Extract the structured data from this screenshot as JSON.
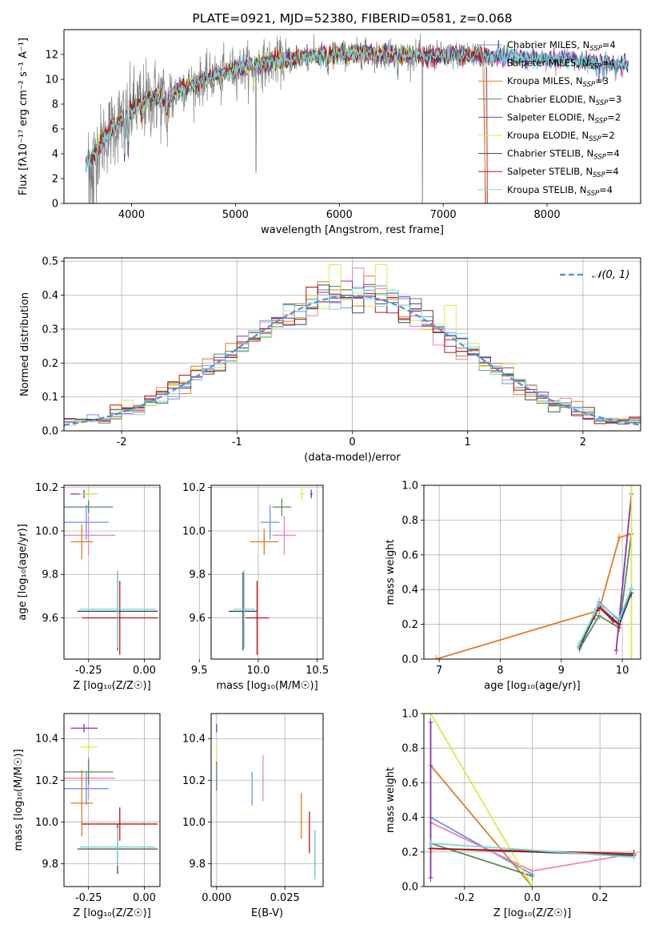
{
  "colors": {
    "Chabrier MILES": "#6495ed",
    "Salpeter MILES": "#ee82b4",
    "Kroupa MILES": "#e07b24",
    "Chabrier ELODIE": "#5a8a5a",
    "Salpeter ELODIE": "#8e2fb0",
    "Kroupa ELODIE": "#d6ec4a",
    "Chabrier STELIB": "#404850",
    "Salpeter STELIB": "#c01010",
    "Kroupa STELIB": "#78d8d8",
    "data": "#808080",
    "gauss": "#4f8fd8"
  },
  "chart_data": [
    {
      "id": "spectrum",
      "type": "line",
      "title": "PLATE=0921, MJD=52380, FIBERID=0581, z=0.068",
      "xlabel": "wavelength [Angstrom, rest frame]",
      "ylabel": "Flux [fλ10⁻¹⁷ erg cm⁻² s⁻¹ A⁻¹]",
      "xlim": [
        3350,
        8900
      ],
      "ylim": [
        0,
        14
      ],
      "xticks": [
        "4000",
        "5000",
        "6000",
        "7000",
        "8000"
      ],
      "yticks": [
        "0",
        "2",
        "4",
        "6",
        "8",
        "10",
        "12"
      ],
      "legend_position": "right",
      "legend": [
        "Chabrier MILES, NSSP=4",
        "Salpeter MILES, NSSP=4",
        "Kroupa MILES, NSSP=3",
        "Chabrier ELODIE, NSSP=3",
        "Salpeter ELODIE, NSSP=2",
        "Kroupa ELODIE, NSSP=2",
        "Chabrier STELIB, NSSP=4",
        "Salpeter STELIB, NSSP=4",
        "Kroupa STELIB, NSSP=4"
      ],
      "continuum": {
        "x": [
          3550,
          3650,
          3750,
          3850,
          3950,
          4050,
          4150,
          4250,
          4350,
          4450,
          4600,
          4800,
          5000,
          5200,
          5400,
          5600,
          5800,
          6000,
          6200,
          6400,
          6600,
          6800,
          7000,
          7200,
          7400,
          7600,
          7800,
          8000,
          8200,
          8400,
          8600,
          8750
        ],
        "y": [
          3.2,
          4.1,
          5.4,
          6.4,
          7.2,
          7.9,
          8.3,
          8.6,
          8.2,
          9.2,
          9.6,
          10.3,
          10.8,
          11.2,
          11.4,
          11.7,
          11.9,
          12.0,
          12.1,
          12.0,
          12.0,
          11.9,
          11.9,
          12.0,
          11.9,
          11.8,
          11.7,
          11.6,
          11.6,
          11.4,
          11.3,
          11.1
        ]
      }
    },
    {
      "id": "residuals",
      "type": "line",
      "xlabel": "(data-model)/error",
      "ylabel": "Normed distribution",
      "xlim": [
        -2.5,
        2.5
      ],
      "ylim": [
        0,
        0.51
      ],
      "xticks": [
        "-2",
        "-1",
        "0",
        "1",
        "2"
      ],
      "yticks": [
        "0.0",
        "0.1",
        "0.2",
        "0.3",
        "0.4",
        "0.5"
      ],
      "grid": true,
      "legend": [
        "𝒩(0, 1)"
      ],
      "bin_width": 0.1
    },
    {
      "id": "age-vs-Z",
      "type": "scatter",
      "xlabel": "Z [log₁₀(Z/Z☉)]",
      "ylabel": "age  [log₁₀(age/yr)]",
      "xlim": [
        -0.36,
        0.07
      ],
      "ylim": [
        9.41,
        10.21
      ],
      "xticks": [
        "-0.25",
        "0.00"
      ],
      "yticks": [
        "9.6",
        "9.8",
        "10.0",
        "10.2"
      ],
      "grid": true,
      "points": [
        {
          "series": "Chabrier MILES",
          "x": -0.26,
          "y": 10.04,
          "xerr": 0.1,
          "yerr": 0.08
        },
        {
          "series": "Salpeter MILES",
          "x": -0.25,
          "y": 9.98,
          "xerr": 0.12,
          "yerr": 0.09
        },
        {
          "series": "Kroupa MILES",
          "x": -0.28,
          "y": 9.95,
          "xerr": 0.05,
          "yerr": 0.08
        },
        {
          "series": "Chabrier ELODIE",
          "x": -0.25,
          "y": 10.11,
          "xerr": 0.11,
          "yerr": 0.03
        },
        {
          "series": "Salpeter ELODIE",
          "x": -0.27,
          "y": 10.17,
          "xerr": 0.06,
          "yerr": 0.02
        },
        {
          "series": "Kroupa ELODIE",
          "x": -0.25,
          "y": 10.17,
          "xerr": 0.04,
          "yerr": 0.02
        },
        {
          "series": "Chabrier STELIB",
          "x": -0.12,
          "y": 9.63,
          "xerr": 0.18,
          "yerr": 0.18
        },
        {
          "series": "Salpeter STELIB",
          "x": -0.11,
          "y": 9.6,
          "xerr": 0.17,
          "yerr": 0.17
        },
        {
          "series": "Kroupa STELIB",
          "x": -0.12,
          "y": 9.64,
          "xerr": 0.17,
          "yerr": 0.18
        }
      ]
    },
    {
      "id": "age-vs-mass",
      "type": "scatter",
      "xlabel": "mass [log₁₀(M/M☉)]",
      "ylabel": "",
      "xlim": [
        9.6,
        10.55
      ],
      "ylim": [
        9.41,
        10.21
      ],
      "xticks": [
        "9.5",
        "10.0",
        "10.5"
      ],
      "yticks": [
        "9.6",
        "9.8",
        "10.0",
        "10.2"
      ],
      "grid": true,
      "points": [
        {
          "series": "Chabrier MILES",
          "x": 10.1,
          "y": 10.04,
          "xerr": 0.08,
          "yerr": 0.08
        },
        {
          "series": "Salpeter MILES",
          "x": 10.22,
          "y": 9.98,
          "xerr": 0.1,
          "yerr": 0.09
        },
        {
          "series": "Kroupa MILES",
          "x": 10.05,
          "y": 9.95,
          "xerr": 0.12,
          "yerr": 0.06
        },
        {
          "series": "Chabrier ELODIE",
          "x": 10.2,
          "y": 10.11,
          "xerr": 0.08,
          "yerr": 0.04
        },
        {
          "series": "Salpeter ELODIE",
          "x": 10.45,
          "y": 10.17,
          "xerr": 0.01,
          "yerr": 0.02
        },
        {
          "series": "Kroupa ELODIE",
          "x": 10.37,
          "y": 10.17,
          "xerr": 0.02,
          "yerr": 0.03
        },
        {
          "series": "Chabrier STELIB",
          "x": 9.87,
          "y": 9.63,
          "xerr": 0.12,
          "yerr": 0.18
        },
        {
          "series": "Salpeter STELIB",
          "x": 9.99,
          "y": 9.6,
          "xerr": 0.1,
          "yerr": 0.17
        },
        {
          "series": "Kroupa STELIB",
          "x": 9.88,
          "y": 9.64,
          "xerr": 0.09,
          "yerr": 0.18
        }
      ]
    },
    {
      "id": "mass-weight-vs-age",
      "type": "line",
      "xlabel": "age  [log₁₀(age/yr)]",
      "ylabel": "mass weight",
      "xlim": [
        6.75,
        10.3
      ],
      "ylim": [
        0,
        1
      ],
      "xticks": [
        "7",
        "8",
        "9",
        "10"
      ],
      "yticks": [
        "0.0",
        "0.2",
        "0.4",
        "0.6",
        "0.8",
        "1.0"
      ],
      "grid": true,
      "series": [
        {
          "series": "Chabrier MILES",
          "x": [
            9.3,
            9.55,
            9.62,
            9.95,
            10.15
          ],
          "y": [
            0.08,
            0.27,
            0.33,
            0.22,
            0.4
          ]
        },
        {
          "series": "Salpeter MILES",
          "x": [
            9.3,
            9.55,
            9.62,
            9.95,
            10.15
          ],
          "y": [
            0.07,
            0.26,
            0.31,
            0.2,
            0.38
          ]
        },
        {
          "series": "Kroupa MILES",
          "x": [
            6.95,
            9.62,
            9.95,
            10.15
          ],
          "y": [
            0.0,
            0.28,
            0.7,
            0.72
          ]
        },
        {
          "series": "Chabrier ELODIE",
          "x": [
            9.3,
            9.62,
            9.95,
            10.15
          ],
          "y": [
            0.06,
            0.25,
            0.18,
            0.72
          ]
        },
        {
          "series": "Salpeter ELODIE",
          "x": [
            9.9,
            10.15
          ],
          "y": [
            0.05,
            0.95
          ]
        },
        {
          "series": "Kroupa ELODIE",
          "x": [
            10.15,
            10.15
          ],
          "y": [
            0.0,
            1.0
          ]
        },
        {
          "series": "Chabrier STELIB",
          "x": [
            9.3,
            9.55,
            9.62,
            9.95,
            10.15
          ],
          "y": [
            0.07,
            0.25,
            0.3,
            0.2,
            0.38
          ]
        },
        {
          "series": "Salpeter STELIB",
          "x": [
            9.55,
            9.62,
            9.85,
            9.95
          ],
          "y": [
            0.25,
            0.3,
            0.22,
            0.2
          ]
        },
        {
          "series": "Kroupa STELIB",
          "x": [
            9.3,
            9.55,
            9.62,
            9.95,
            10.15
          ],
          "y": [
            0.09,
            0.27,
            0.32,
            0.23,
            0.41
          ]
        }
      ]
    },
    {
      "id": "mass-vs-Z",
      "type": "scatter",
      "xlabel": "Z [log₁₀(Z/Z☉)]",
      "ylabel": "mass [log₁₀(M/M☉)]",
      "xlim": [
        -0.36,
        0.07
      ],
      "ylim": [
        9.69,
        10.52
      ],
      "xticks": [
        "-0.25",
        "0.00"
      ],
      "yticks": [
        "9.8",
        "10.0",
        "10.2",
        "10.4"
      ],
      "grid": true,
      "points": [
        {
          "series": "Chabrier MILES",
          "x": -0.26,
          "y": 10.16,
          "xerr": 0.1,
          "yerr": 0.08
        },
        {
          "series": "Salpeter MILES",
          "x": -0.25,
          "y": 10.21,
          "xerr": 0.12,
          "yerr": 0.1
        },
        {
          "series": "Kroupa MILES",
          "x": -0.28,
          "y": 10.09,
          "xerr": 0.05,
          "yerr": 0.16
        },
        {
          "series": "Chabrier ELODIE",
          "x": -0.25,
          "y": 10.24,
          "xerr": 0.11,
          "yerr": 0.06
        },
        {
          "series": "Salpeter ELODIE",
          "x": -0.27,
          "y": 10.45,
          "xerr": 0.06,
          "yerr": 0.02
        },
        {
          "series": "Kroupa ELODIE",
          "x": -0.25,
          "y": 10.36,
          "xerr": 0.04,
          "yerr": 0.03
        },
        {
          "series": "Chabrier STELIB",
          "x": -0.12,
          "y": 9.87,
          "xerr": 0.18,
          "yerr": 0.12
        },
        {
          "series": "Salpeter STELIB",
          "x": -0.11,
          "y": 9.99,
          "xerr": 0.17,
          "yerr": 0.08
        },
        {
          "series": "Kroupa STELIB",
          "x": -0.12,
          "y": 9.88,
          "xerr": 0.17,
          "yerr": 0.09
        }
      ]
    },
    {
      "id": "mass-vs-EBV",
      "type": "scatter",
      "xlabel": "E(B-V)",
      "ylabel": "",
      "xlim": [
        -0.002,
        0.039
      ],
      "ylim": [
        9.69,
        10.52
      ],
      "xticks": [
        "0.000",
        "0.025"
      ],
      "yticks": [
        "9.8",
        "10.0",
        "10.2",
        "10.4"
      ],
      "grid": true,
      "points": [
        {
          "series": "Chabrier MILES",
          "x": 0.013,
          "y": 10.16,
          "yerr": 0.08
        },
        {
          "series": "Salpeter MILES",
          "x": 0.017,
          "y": 10.21,
          "yerr": 0.11
        },
        {
          "series": "Kroupa MILES",
          "x": 0.031,
          "y": 10.03,
          "yerr": 0.11
        },
        {
          "series": "Chabrier ELODIE",
          "x": 0.0,
          "y": 10.22,
          "yerr": 0.07
        },
        {
          "series": "Salpeter ELODIE",
          "x": 0.0,
          "y": 10.45,
          "yerr": 0.02
        },
        {
          "series": "Kroupa ELODIE",
          "x": 0.0,
          "y": 10.35,
          "yerr": 0.03
        },
        {
          "series": "Chabrier STELIB",
          "x": 0.036,
          "y": 9.85,
          "yerr": 0.11
        },
        {
          "series": "Salpeter STELIB",
          "x": 0.034,
          "y": 9.95,
          "yerr": 0.1
        },
        {
          "series": "Kroupa STELIB",
          "x": 0.036,
          "y": 9.84,
          "yerr": 0.12
        }
      ]
    },
    {
      "id": "mass-weight-vs-Z",
      "type": "line",
      "xlabel": "Z [log₁₀(Z/Z☉)]",
      "ylabel": "mass weight",
      "xlim": [
        -0.32,
        0.32
      ],
      "ylim": [
        0,
        1
      ],
      "xticks": [
        "-0.2",
        "0.0",
        "0.2"
      ],
      "yticks": [
        "0.0",
        "0.2",
        "0.4",
        "0.6",
        "0.8",
        "1.0"
      ],
      "grid": true,
      "series": [
        {
          "series": "Chabrier MILES",
          "x": [
            -0.3,
            0.0
          ],
          "y": [
            0.4,
            0.07
          ]
        },
        {
          "series": "Salpeter MILES",
          "x": [
            -0.3,
            0.0,
            0.3
          ],
          "y": [
            0.37,
            0.09,
            0.19
          ]
        },
        {
          "series": "Kroupa MILES",
          "x": [
            -0.3,
            0.0
          ],
          "y": [
            0.7,
            0.0
          ]
        },
        {
          "series": "Chabrier ELODIE",
          "x": [
            -0.3,
            0.0
          ],
          "y": [
            0.25,
            0.06
          ]
        },
        {
          "series": "Salpeter ELODIE",
          "x": [
            -0.3,
            -0.3
          ],
          "y": [
            0.05,
            0.95
          ]
        },
        {
          "series": "Kroupa ELODIE",
          "x": [
            -0.3,
            0.0
          ],
          "y": [
            1.0,
            0.0
          ]
        },
        {
          "series": "Chabrier STELIB",
          "x": [
            -0.3,
            0.3
          ],
          "y": [
            0.22,
            0.18
          ]
        },
        {
          "series": "Salpeter STELIB",
          "x": [
            -0.3,
            0.3
          ],
          "y": [
            0.22,
            0.19
          ]
        },
        {
          "series": "Kroupa STELIB",
          "x": [
            -0.3,
            0.3
          ],
          "y": [
            0.25,
            0.17
          ]
        }
      ]
    }
  ]
}
